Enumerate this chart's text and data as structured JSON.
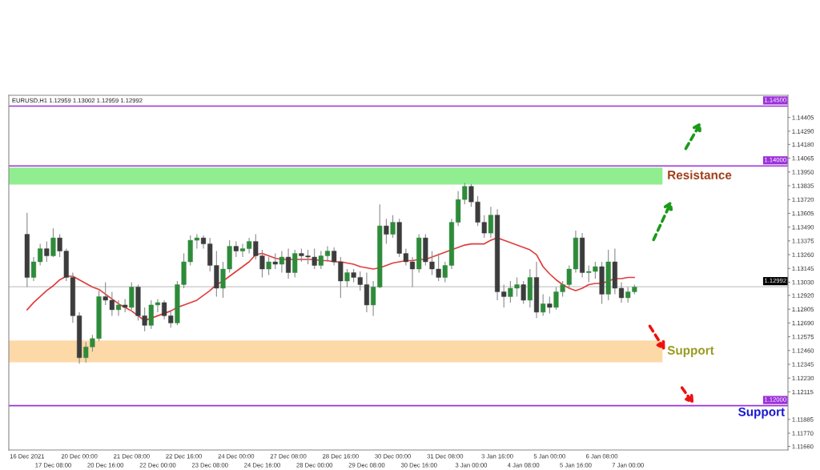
{
  "chart_data": {
    "type": "candlestick",
    "title": "EURUSD,H1 1.12959 1.13002 1.12959 1.12992",
    "categories": [
      "16 Dec 2021",
      null,
      null,
      null,
      "17 Dec 08:00",
      null,
      null,
      null,
      "20 Dec 00:00",
      null,
      null,
      null,
      "20 Dec 16:00",
      null,
      null,
      null,
      "21 Dec 08:00",
      null,
      null,
      null,
      "22 Dec 00:00",
      null,
      null,
      null,
      "22 Dec 16:00",
      null,
      null,
      null,
      "23 Dec 08:00",
      null,
      null,
      null,
      "24 Dec 00:00",
      null,
      null,
      null,
      "24 Dec 16:00",
      null,
      null,
      null,
      "27 Dec 08:00",
      null,
      null,
      null,
      "28 Dec 00:00",
      null,
      null,
      null,
      "28 Dec 16:00",
      null,
      null,
      null,
      "29 Dec 08:00",
      null,
      null,
      null,
      "30 Dec 00:00",
      null,
      null,
      null,
      "30 Dec 16:00",
      null,
      null,
      null,
      "31 Dec 08:00",
      null,
      null,
      null,
      "3 Jan 00:00",
      null,
      null,
      null,
      "3 Jan 16:00",
      null,
      null,
      null,
      "4 Jan 08:00",
      null,
      null,
      null,
      "5 Jan 00:00",
      null,
      null,
      null,
      "5 Jan 16:00",
      null,
      null,
      null,
      "6 Jan 08:00",
      null,
      null,
      null,
      "7 Jan 00:00",
      null,
      null,
      null,
      null,
      null,
      null,
      null,
      null,
      null,
      null,
      null,
      null,
      null,
      null,
      null,
      null,
      null,
      null,
      null,
      null,
      null,
      null,
      null,
      null
    ],
    "ohlc": [
      [
        1.1343,
        1.1361,
        1.1299,
        1.1307
      ],
      [
        1.1307,
        1.1324,
        1.1304,
        1.132
      ],
      [
        1.132,
        1.1335,
        1.1317,
        1.1331
      ],
      [
        1.1331,
        1.1337,
        1.132,
        1.1325
      ],
      [
        1.1325,
        1.1348,
        1.1324,
        1.134
      ],
      [
        1.134,
        1.1343,
        1.1324,
        1.1329
      ],
      [
        1.1329,
        1.1331,
        1.1304,
        1.1307
      ],
      [
        1.1307,
        1.1311,
        1.1269,
        1.1275
      ],
      [
        1.1275,
        1.1278,
        1.1235,
        1.124
      ],
      [
        1.124,
        1.1253,
        1.1236,
        1.1249
      ],
      [
        1.1249,
        1.1259,
        1.1245,
        1.1256
      ],
      [
        1.1256,
        1.1296,
        1.1254,
        1.1291
      ],
      [
        1.1291,
        1.1303,
        1.1284,
        1.1288
      ],
      [
        1.1288,
        1.1295,
        1.1275,
        1.128
      ],
      [
        1.128,
        1.1288,
        1.1275,
        1.1284
      ],
      [
        1.1284,
        1.1289,
        1.1278,
        1.1282
      ],
      [
        1.1282,
        1.1303,
        1.128,
        1.1299
      ],
      [
        1.1299,
        1.1301,
        1.1271,
        1.1275
      ],
      [
        1.1275,
        1.1282,
        1.1262,
        1.1267
      ],
      [
        1.1267,
        1.1288,
        1.1264,
        1.1284
      ],
      [
        1.1284,
        1.1289,
        1.1278,
        1.1286
      ],
      [
        1.1286,
        1.1288,
        1.1272,
        1.1275
      ],
      [
        1.1275,
        1.128,
        1.1265,
        1.1269
      ],
      [
        1.1269,
        1.1304,
        1.1267,
        1.1301
      ],
      [
        1.1301,
        1.1327,
        1.1298,
        1.132
      ],
      [
        1.132,
        1.1342,
        1.1317,
        1.1338
      ],
      [
        1.1338,
        1.1343,
        1.1331,
        1.134
      ],
      [
        1.134,
        1.1342,
        1.1331,
        1.1335
      ],
      [
        1.1335,
        1.134,
        1.1312,
        1.1317
      ],
      [
        1.1317,
        1.1329,
        1.1291,
        1.1298
      ],
      [
        1.1298,
        1.132,
        1.129,
        1.1314
      ],
      [
        1.1314,
        1.1338,
        1.1311,
        1.1333
      ],
      [
        1.1333,
        1.1337,
        1.1324,
        1.1329
      ],
      [
        1.1329,
        1.1335,
        1.1324,
        1.1331
      ],
      [
        1.1331,
        1.134,
        1.1327,
        1.1337
      ],
      [
        1.1337,
        1.1343,
        1.1322,
        1.1325
      ],
      [
        1.1325,
        1.133,
        1.1307,
        1.1314
      ],
      [
        1.1314,
        1.1324,
        1.1309,
        1.132
      ],
      [
        1.132,
        1.1327,
        1.1314,
        1.1318
      ],
      [
        1.1318,
        1.1329,
        1.1311,
        1.1324
      ],
      [
        1.1324,
        1.1331,
        1.1306,
        1.1311
      ],
      [
        1.1311,
        1.133,
        1.1307,
        1.1327
      ],
      [
        1.1327,
        1.1331,
        1.132,
        1.1325
      ],
      [
        1.1325,
        1.133,
        1.1318,
        1.1324
      ],
      [
        1.1324,
        1.1331,
        1.1314,
        1.1317
      ],
      [
        1.1317,
        1.1329,
        1.1314,
        1.1325
      ],
      [
        1.1325,
        1.1333,
        1.132,
        1.1329
      ],
      [
        1.1329,
        1.1332,
        1.1317,
        1.132
      ],
      [
        1.132,
        1.1324,
        1.129,
        1.1304
      ],
      [
        1.1304,
        1.1314,
        1.1299,
        1.1311
      ],
      [
        1.1311,
        1.1314,
        1.1303,
        1.1307
      ],
      [
        1.1307,
        1.1312,
        1.1296,
        1.1301
      ],
      [
        1.1301,
        1.1311,
        1.1278,
        1.1284
      ],
      [
        1.1284,
        1.1304,
        1.1275,
        1.1299
      ],
      [
        1.1299,
        1.1368,
        1.1298,
        1.135
      ],
      [
        1.135,
        1.1356,
        1.1335,
        1.1343
      ],
      [
        1.1343,
        1.1359,
        1.134,
        1.1353
      ],
      [
        1.1353,
        1.1356,
        1.1324,
        1.1327
      ],
      [
        1.1327,
        1.1331,
        1.1317,
        1.132
      ],
      [
        1.132,
        1.1324,
        1.1299,
        1.1314
      ],
      [
        1.1314,
        1.1343,
        1.1311,
        1.134
      ],
      [
        1.134,
        1.1343,
        1.1317,
        1.132
      ],
      [
        1.132,
        1.1329,
        1.1309,
        1.1314
      ],
      [
        1.1314,
        1.1327,
        1.1304,
        1.1307
      ],
      [
        1.1307,
        1.132,
        1.1303,
        1.1317
      ],
      [
        1.1317,
        1.1356,
        1.1314,
        1.1353
      ],
      [
        1.1353,
        1.1379,
        1.135,
        1.1372
      ],
      [
        1.1372,
        1.1386,
        1.1368,
        1.1383
      ],
      [
        1.1383,
        1.1385,
        1.1366,
        1.137
      ],
      [
        1.137,
        1.1375,
        1.135,
        1.1353
      ],
      [
        1.1353,
        1.1359,
        1.134,
        1.1344
      ],
      [
        1.1344,
        1.1366,
        1.134,
        1.1359
      ],
      [
        1.1359,
        1.1364,
        1.1288,
        1.1295
      ],
      [
        1.1295,
        1.1301,
        1.1282,
        1.1291
      ],
      [
        1.1291,
        1.1304,
        1.1286,
        1.1298
      ],
      [
        1.1298,
        1.1307,
        1.1291,
        1.1301
      ],
      [
        1.1301,
        1.1304,
        1.1285,
        1.1288
      ],
      [
        1.1288,
        1.1314,
        1.1282,
        1.1307
      ],
      [
        1.1307,
        1.132,
        1.1273,
        1.1278
      ],
      [
        1.1278,
        1.1293,
        1.1275,
        1.1285
      ],
      [
        1.1285,
        1.1291,
        1.1277,
        1.1282
      ],
      [
        1.1282,
        1.1299,
        1.128,
        1.1295
      ],
      [
        1.1295,
        1.1304,
        1.1291,
        1.1301
      ],
      [
        1.1301,
        1.1317,
        1.1298,
        1.1314
      ],
      [
        1.1314,
        1.1346,
        1.1311,
        1.134
      ],
      [
        1.134,
        1.1344,
        1.1307,
        1.1311
      ],
      [
        1.1311,
        1.1317,
        1.1303,
        1.1312
      ],
      [
        1.1312,
        1.132,
        1.1306,
        1.1316
      ],
      [
        1.1316,
        1.132,
        1.1285,
        1.1293
      ],
      [
        1.1293,
        1.133,
        1.1288,
        1.132
      ],
      [
        1.132,
        1.1331,
        1.1293,
        1.1298
      ],
      [
        1.1298,
        1.1303,
        1.1286,
        1.129
      ],
      [
        1.129,
        1.1299,
        1.1286,
        1.1295
      ],
      [
        1.1295,
        1.1301,
        1.1293,
        1.1299
      ],
      null,
      null,
      null,
      null,
      null,
      null,
      null,
      null,
      null,
      null,
      null,
      null,
      null,
      null,
      null,
      null,
      null,
      null,
      null,
      null,
      null,
      null,
      null
    ],
    "series": [
      {
        "type": "line",
        "color": "#e03c3c",
        "values": [
          1.128,
          1.1286,
          1.1291,
          1.1296,
          1.13,
          1.1305,
          1.1308,
          1.1308,
          1.1305,
          1.1302,
          1.1299,
          1.1297,
          1.1293,
          1.1289,
          1.1285,
          1.1282,
          1.1279,
          1.1275,
          1.1271,
          1.1273,
          1.1275,
          1.1277,
          1.1279,
          1.1282,
          1.1284,
          1.1286,
          1.1288,
          1.1292,
          1.1296,
          1.1301,
          1.1304,
          1.1308,
          1.1312,
          1.1316,
          1.132,
          1.1326,
          1.1327,
          1.1325,
          1.1323,
          1.1322,
          1.1322,
          1.1322,
          1.1322,
          1.1322,
          1.1322,
          1.1321,
          1.1321,
          1.132,
          1.132,
          1.1319,
          1.1318,
          1.1316,
          1.1315,
          1.1314,
          1.1315,
          1.1317,
          1.1319,
          1.132,
          1.1321,
          1.1321,
          1.1322,
          1.1322,
          1.1324,
          1.1326,
          1.1328,
          1.133,
          1.1332,
          1.1334,
          1.1335,
          1.1335,
          1.1335,
          1.1338,
          1.134,
          1.1338,
          1.1336,
          1.1334,
          1.1332,
          1.133,
          1.1326,
          1.1316,
          1.131,
          1.1305,
          1.1301,
          1.1298,
          1.1296,
          1.1298,
          1.1301,
          1.1302,
          1.1302,
          1.1304,
          1.1306,
          1.1306,
          1.1307,
          1.1307,
          null,
          null,
          null,
          null,
          null,
          null,
          null,
          null,
          null,
          null,
          null,
          null,
          null,
          null,
          null,
          null,
          null,
          null,
          null,
          null,
          null,
          null,
          null
        ]
      }
    ],
    "ylim": [
      1.1163,
      1.1459
    ],
    "yticks": [
      1.14405,
      {
        "value": 1.1429,
        "label": "1.14290"
      },
      {
        "value": 1.1418,
        "label": "1.14180"
      },
      1.14065,
      {
        "value": 1.1395,
        "label": "1.13950"
      },
      1.13835,
      {
        "value": 1.1372,
        "label": "1.13720"
      },
      1.13605,
      {
        "value": 1.1349,
        "label": "1.13490"
      },
      1.13375,
      {
        "value": 1.1326,
        "label": "1.13260"
      },
      1.13145,
      {
        "value": 1.1303,
        "label": "1.13030"
      },
      {
        "value": 1.1292,
        "label": "1.12920"
      },
      1.12805,
      {
        "value": 1.1269,
        "label": "1.12690"
      },
      1.12575,
      {
        "value": 1.1246,
        "label": "1.12460"
      },
      1.12345,
      {
        "value": 1.1223,
        "label": "1.12230"
      },
      1.12115,
      1.11885,
      {
        "value": 1.1177,
        "label": "1.11770"
      },
      {
        "value": 1.1166,
        "label": "1.11660"
      }
    ],
    "ref_lines": [
      {
        "axis": "y",
        "value": 1.145,
        "label": "1.14500",
        "color": "#9b30d9"
      },
      {
        "axis": "y",
        "value": 1.14,
        "label": "1.14000",
        "color": "#9b30d9"
      },
      {
        "axis": "y",
        "value": 1.12,
        "label": "1.12000",
        "color": "#9b30d9"
      },
      {
        "axis": "y",
        "value": 1.12992,
        "label": "1.12992",
        "color": "#c8c8c8"
      }
    ],
    "bands": [
      {
        "axis": "y",
        "from": 1.13845,
        "to": 1.13987,
        "label": "Resistance",
        "color": "#90ee90"
      },
      {
        "axis": "y",
        "from": 1.12362,
        "to": 1.12544,
        "label": "Support",
        "color": "#fdd9a8"
      }
    ],
    "annotations": [
      "Support"
    ],
    "grid": false
  }
}
